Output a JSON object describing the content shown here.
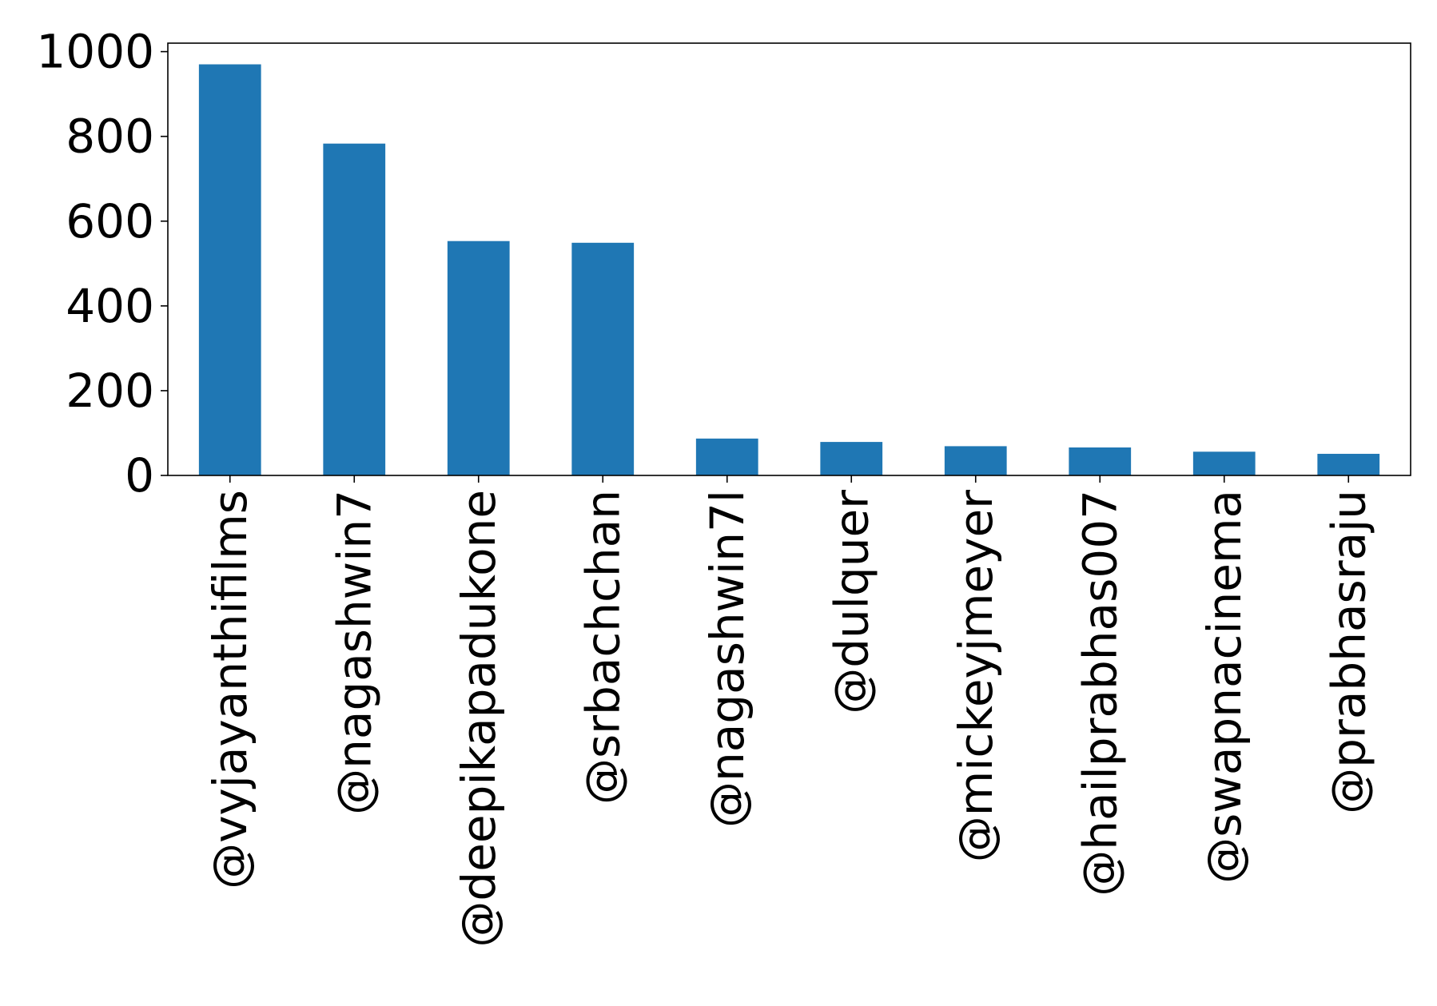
{
  "chart_data": {
    "type": "bar",
    "title": "",
    "xlabel": "",
    "ylabel": "",
    "categories": [
      "@vyjayanthifilms",
      "@nagashwin7",
      "@deepikapadukone",
      "@srbachchan",
      "@nagashwin7l",
      "@dulquer",
      "@mickeyjmeyer",
      "@hailprabhas007",
      "@swapnacinema",
      "@prabhasraju"
    ],
    "values": [
      970,
      783,
      553,
      549,
      87,
      79,
      69,
      66,
      56,
      51
    ],
    "ylim": [
      0,
      1020
    ],
    "yticks": [
      "0",
      "200",
      "400",
      "600",
      "800",
      "1000"
    ],
    "ytick_values": [
      0,
      200,
      400,
      600,
      800,
      1000
    ],
    "bar_color": "#1f77b4",
    "grid": false,
    "legend": "none"
  }
}
